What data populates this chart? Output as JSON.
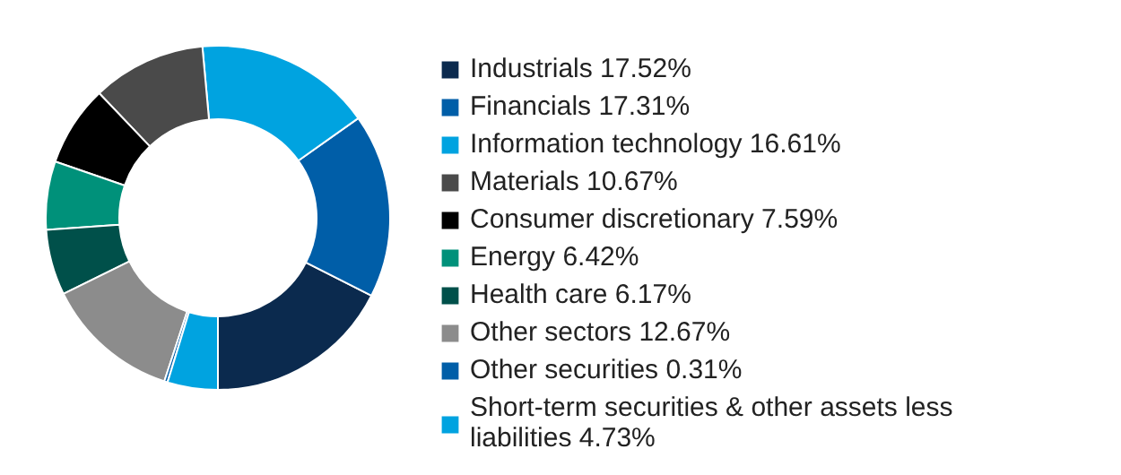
{
  "chart_data": {
    "type": "donut",
    "categories": [
      "Industrials",
      "Financials",
      "Information technology",
      "Materials",
      "Consumer discretionary",
      "Energy",
      "Health care",
      "Other sectors",
      "Other securities",
      "Short-term securities & other assets less liabilities"
    ],
    "values": [
      17.52,
      17.31,
      16.61,
      10.67,
      7.59,
      6.42,
      6.17,
      12.67,
      0.31,
      4.73
    ],
    "value_labels": [
      "17.52%",
      "17.31%",
      "16.61%",
      "10.67%",
      "7.59%",
      "6.42%",
      "6.17%",
      "12.67%",
      "0.31%",
      "4.73%"
    ],
    "colors": [
      "#0b2a4e",
      "#005ea8",
      "#00a3e0",
      "#4a4a4a",
      "#000000",
      "#00917a",
      "#00504a",
      "#8c8c8c",
      "#005ea8",
      "#00a3e0"
    ],
    "legend": "right"
  }
}
